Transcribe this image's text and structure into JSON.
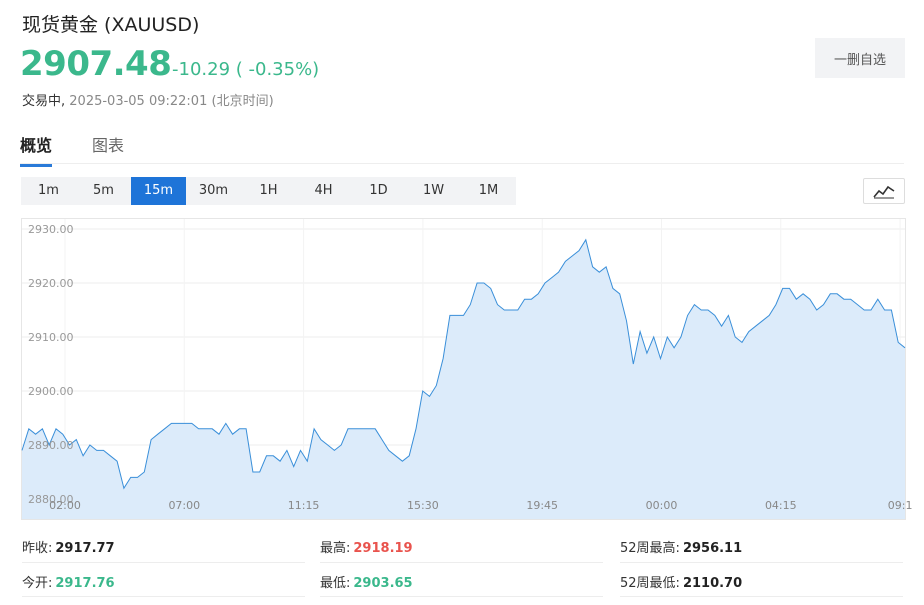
{
  "header": {
    "title": "现货黄金  (XAUUSD)",
    "price": "2907.48",
    "change": "-10.29 ( -0.35%)",
    "status": "交易中,",
    "timestamp": "2025-03-05 09:22:01",
    "timezone": "(北京时间)",
    "watch_button": "一删自选"
  },
  "tabs": [
    {
      "label": "概览",
      "active": true
    },
    {
      "label": "图表",
      "active": false
    }
  ],
  "periods": [
    {
      "label": "1m",
      "active": false
    },
    {
      "label": "5m",
      "active": false
    },
    {
      "label": "15m",
      "active": true
    },
    {
      "label": "30m",
      "active": false
    },
    {
      "label": "1H",
      "active": false
    },
    {
      "label": "4H",
      "active": false
    },
    {
      "label": "1D",
      "active": false
    },
    {
      "label": "1W",
      "active": false
    },
    {
      "label": "1M",
      "active": false
    }
  ],
  "chart_data": {
    "type": "area",
    "x_tick_labels": [
      "02:00",
      "07:00",
      "11:15",
      "15:30",
      "19:45",
      "00:00",
      "04:15",
      "09:1"
    ],
    "y_tick_labels": [
      "2930.00",
      "2920.00",
      "2910.00",
      "2900.00",
      "2890.00",
      "2880.00"
    ],
    "ylim": [
      2880,
      2930
    ],
    "grid": true,
    "line_color": "#3a8fd9",
    "fill_color": "#dcebfa",
    "values": [
      2889,
      2893,
      2892,
      2893,
      2890,
      2893,
      2892,
      2890,
      2891,
      2888,
      2890,
      2889,
      2889,
      2888,
      2887,
      2882,
      2884,
      2884,
      2885,
      2891,
      2892,
      2893,
      2894,
      2894,
      2894,
      2894,
      2893,
      2893,
      2893,
      2892,
      2894,
      2892,
      2893,
      2893,
      2885,
      2885,
      2888,
      2888,
      2887,
      2889,
      2886,
      2889,
      2887,
      2893,
      2891,
      2890,
      2889,
      2890,
      2893,
      2893,
      2893,
      2893,
      2893,
      2891,
      2889,
      2888,
      2887,
      2888,
      2893,
      2900,
      2899,
      2901,
      2906,
      2914,
      2914,
      2914,
      2916,
      2920,
      2920,
      2919,
      2916,
      2915,
      2915,
      2915,
      2917,
      2917,
      2918,
      2920,
      2921,
      2922,
      2924,
      2925,
      2926,
      2928,
      2923,
      2922,
      2923,
      2919,
      2918,
      2913,
      2905,
      2911,
      2907,
      2910,
      2906,
      2910,
      2908,
      2910,
      2914,
      2916,
      2915,
      2915,
      2914,
      2912,
      2914,
      2910,
      2909,
      2911,
      2912,
      2913,
      2914,
      2916,
      2919,
      2919,
      2917,
      2918,
      2917,
      2915,
      2916,
      2918,
      2918,
      2917,
      2917,
      2916,
      2915,
      2915,
      2917,
      2915,
      2915,
      2909,
      2908
    ]
  },
  "stats": {
    "prev_close_label": "昨收:",
    "prev_close": "2917.77",
    "high_label": "最高:",
    "high": "2918.19",
    "week52_high_label": "52周最高:",
    "week52_high": "2956.11",
    "open_label": "今开:",
    "open": "2917.76",
    "low_label": "最低:",
    "low": "2903.65",
    "week52_low_label": "52周最低:",
    "week52_low": "2110.70"
  }
}
